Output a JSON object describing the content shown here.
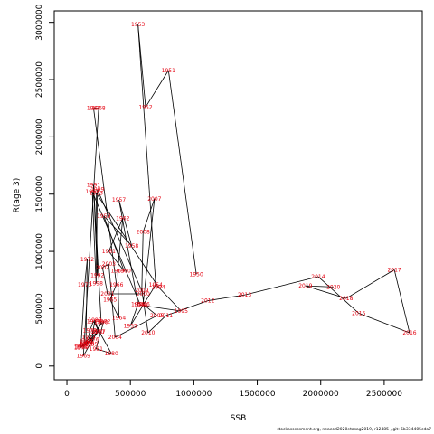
{
  "chart_data": {
    "type": "line",
    "title": "",
    "xlabel": "SSB",
    "ylabel": "R(age 3)",
    "xlim": [
      -100000,
      2800000
    ],
    "ylim": [
      -120000,
      3100000
    ],
    "x_ticks": [
      0,
      500000,
      1000000,
      1500000,
      2000000,
      2500000
    ],
    "x_tick_labels": [
      "0",
      "500000",
      "1000000",
      "1500000",
      "2000000",
      "2500000"
    ],
    "y_ticks": [
      0,
      500000,
      1000000,
      1500000,
      2000000,
      2500000,
      3000000
    ],
    "y_tick_labels": [
      "0",
      "500000",
      "1000000",
      "1500000",
      "2000000",
      "2500000",
      "3000000"
    ],
    "grid": false,
    "line_color": "#000000",
    "label_color": "#e4000f",
    "points": [
      {
        "year": "1950",
        "x": 1020000,
        "y": 800000
      },
      {
        "year": "1951",
        "x": 800000,
        "y": 2580000
      },
      {
        "year": "1952",
        "x": 620000,
        "y": 2260000
      },
      {
        "year": "1953",
        "x": 560000,
        "y": 2980000
      },
      {
        "year": "1954",
        "x": 700000,
        "y": 710000
      },
      {
        "year": "1955",
        "x": 500000,
        "y": 350000
      },
      {
        "year": "1956",
        "x": 560000,
        "y": 540000
      },
      {
        "year": "1957",
        "x": 410000,
        "y": 1450000
      },
      {
        "year": "1958",
        "x": 510000,
        "y": 1050000
      },
      {
        "year": "1959",
        "x": 290000,
        "y": 1310000
      },
      {
        "year": "1960",
        "x": 450000,
        "y": 830000
      },
      {
        "year": "1961",
        "x": 330000,
        "y": 1000000
      },
      {
        "year": "1962",
        "x": 440000,
        "y": 1290000
      },
      {
        "year": "1963",
        "x": 400000,
        "y": 830000
      },
      {
        "year": "1964",
        "x": 410000,
        "y": 420000
      },
      {
        "year": "1965",
        "x": 340000,
        "y": 580000
      },
      {
        "year": "1966",
        "x": 390000,
        "y": 710000
      },
      {
        "year": "1967",
        "x": 210000,
        "y": 2250000
      },
      {
        "year": "1968",
        "x": 250000,
        "y": 2250000
      },
      {
        "year": "1969",
        "x": 130000,
        "y": 90000
      },
      {
        "year": "1970",
        "x": 240000,
        "y": 300000
      },
      {
        "year": "1971",
        "x": 150000,
        "y": 190000
      },
      {
        "year": "1972",
        "x": 160000,
        "y": 930000
      },
      {
        "year": "1973",
        "x": 140000,
        "y": 710000
      },
      {
        "year": "1974",
        "x": 110000,
        "y": 160000
      },
      {
        "year": "1975",
        "x": 160000,
        "y": 210000
      },
      {
        "year": "1976",
        "x": 200000,
        "y": 230000
      },
      {
        "year": "1977",
        "x": 170000,
        "y": 250000
      },
      {
        "year": "1978",
        "x": 180000,
        "y": 310000
      },
      {
        "year": "1979",
        "x": 210000,
        "y": 390000
      },
      {
        "year": "1980",
        "x": 350000,
        "y": 110000
      },
      {
        "year": "1981",
        "x": 230000,
        "y": 150000
      },
      {
        "year": "1982",
        "x": 290000,
        "y": 390000
      },
      {
        "year": "1983",
        "x": 150000,
        "y": 210000
      },
      {
        "year": "1984",
        "x": 110000,
        "y": 170000
      },
      {
        "year": "1985",
        "x": 120000,
        "y": 170000
      },
      {
        "year": "1986",
        "x": 160000,
        "y": 190000
      },
      {
        "year": "1987",
        "x": 250000,
        "y": 300000
      },
      {
        "year": "1988",
        "x": 220000,
        "y": 400000
      },
      {
        "year": "1989",
        "x": 190000,
        "y": 190000
      },
      {
        "year": "1990",
        "x": 270000,
        "y": 380000
      },
      {
        "year": "1991",
        "x": 210000,
        "y": 1580000
      },
      {
        "year": "1992",
        "x": 240000,
        "y": 790000
      },
      {
        "year": "1993",
        "x": 230000,
        "y": 1510000
      },
      {
        "year": "1994",
        "x": 720000,
        "y": 690000
      },
      {
        "year": "1995",
        "x": 900000,
        "y": 480000
      },
      {
        "year": "1996",
        "x": 580000,
        "y": 530000
      },
      {
        "year": "1997",
        "x": 200000,
        "y": 1520000
      },
      {
        "year": "1998",
        "x": 230000,
        "y": 720000
      },
      {
        "year": "1999",
        "x": 240000,
        "y": 1540000
      },
      {
        "year": "2000",
        "x": 600000,
        "y": 630000
      },
      {
        "year": "2001",
        "x": 320000,
        "y": 630000
      },
      {
        "year": "2002",
        "x": 280000,
        "y": 860000
      },
      {
        "year": "2003",
        "x": 330000,
        "y": 890000
      },
      {
        "year": "2004",
        "x": 380000,
        "y": 250000
      },
      {
        "year": "2005",
        "x": 710000,
        "y": 440000
      },
      {
        "year": "2006",
        "x": 600000,
        "y": 540000
      },
      {
        "year": "2007",
        "x": 690000,
        "y": 1460000
      },
      {
        "year": "2008",
        "x": 600000,
        "y": 1170000
      },
      {
        "year": "2009",
        "x": 590000,
        "y": 660000
      },
      {
        "year": "2010",
        "x": 640000,
        "y": 290000
      },
      {
        "year": "2011",
        "x": 780000,
        "y": 440000
      },
      {
        "year": "2012",
        "x": 1110000,
        "y": 570000
      },
      {
        "year": "2013",
        "x": 1400000,
        "y": 620000
      },
      {
        "year": "2014",
        "x": 1980000,
        "y": 780000
      },
      {
        "year": "2015",
        "x": 2300000,
        "y": 460000
      },
      {
        "year": "2016",
        "x": 2700000,
        "y": 290000
      },
      {
        "year": "2017",
        "x": 2580000,
        "y": 840000
      },
      {
        "year": "2018",
        "x": 2200000,
        "y": 590000
      },
      {
        "year": "2019",
        "x": 1880000,
        "y": 700000
      },
      {
        "year": "2020",
        "x": 2100000,
        "y": 690000
      }
    ]
  },
  "footnote": "stockassessment.org, neacod2020etasag2019, r12485 , git: 5b334405cda7"
}
